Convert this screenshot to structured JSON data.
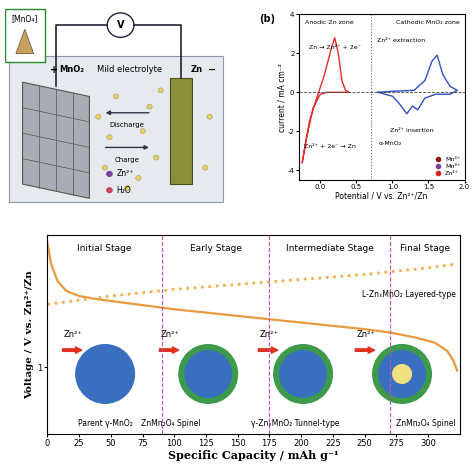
{
  "schematic": {
    "inset_label": "[MnO₄]",
    "voltmeter": "V",
    "cathode_sign": "+",
    "cathode_label": "MnO₂",
    "electrolyte": "Mild electrolyte",
    "anode_label": "Zn",
    "anode_sign": "−",
    "discharge": "Discharge",
    "charge": "Charge",
    "legend_items": [
      {
        "name": "Zn²⁺",
        "color": "#7a3fa0"
      },
      {
        "name": "H₂O",
        "color": "#d04060"
      }
    ]
  },
  "chart_data": [
    {
      "type": "line",
      "panel_label": "(b)",
      "xlabel": "Potential / V vs. Zn²⁺/Zn",
      "ylabel": "current / mA cm⁻²",
      "xlim": [
        -0.3,
        2.0
      ],
      "ylim": [
        -4.5,
        4
      ],
      "xticks": [
        {
          "value": 0,
          "label": "0.0"
        },
        {
          "value": 0.5,
          "label": "0.5"
        },
        {
          "value": 1,
          "label": "1.0"
        },
        {
          "value": 1.5,
          "label": "1.5"
        },
        {
          "value": 2,
          "label": "2.0"
        }
      ],
      "yticks": [
        -4,
        -2,
        0,
        2,
        4
      ],
      "zone_boundary": 0.7,
      "annotations": [
        "Anodic Zn zone",
        "Cathodic MnO₂ zone",
        "Zn → Zn²⁺ + 2e⁻",
        "Zn²⁺ + 2e⁻ → Zn",
        "Zn²⁺ extraction",
        "Zn²⁺ insertion",
        "α-MnO₂"
      ],
      "legend_items": [
        {
          "name": "Mn⁴⁺",
          "color": "#8b1a1a"
        },
        {
          "name": "Mn³⁺",
          "color": "#7a3fa0"
        },
        {
          "name": "Zn²⁺",
          "color": "#e02020"
        }
      ],
      "legend": "lower right",
      "series": [
        {
          "color": "#e03030",
          "line_style": "solid",
          "x": [
            -0.25,
            -0.15,
            -0.05,
            0.05,
            0.15,
            0.2,
            0.25,
            0.3,
            0.35,
            0.4,
            0.3,
            0.1,
            0.0,
            -0.1,
            -0.2,
            -0.25
          ],
          "values": [
            -3.6,
            -1.5,
            -0.3,
            0.8,
            2.2,
            2.8,
            2.0,
            0.6,
            0.1,
            0.0,
            0.0,
            0.0,
            -0.1,
            -0.8,
            -2.5,
            -3.6
          ]
        },
        {
          "color": "#3050c0",
          "line_style": "solid",
          "x": [
            0.8,
            1.0,
            1.1,
            1.2,
            1.28,
            1.35,
            1.45,
            1.6,
            1.8,
            1.9,
            1.8,
            1.7,
            1.62,
            1.55,
            1.45,
            1.3,
            1.0,
            0.8
          ],
          "values": [
            0.0,
            -0.2,
            -0.6,
            -1.1,
            -0.7,
            -0.9,
            -0.3,
            -0.1,
            -0.1,
            0.1,
            0.3,
            0.9,
            1.9,
            1.6,
            0.6,
            0.1,
            0.05,
            0.0
          ]
        }
      ]
    },
    {
      "type": "line",
      "xlabel": "Specific Capacity / mAh g⁻¹",
      "ylabel": "Voltage / V vs. Zn²⁺/Zn",
      "xlim": [
        0,
        325
      ],
      "ylim": [
        0.6,
        1.8
      ],
      "xticks": [
        0,
        25,
        50,
        75,
        100,
        125,
        150,
        175,
        200,
        225,
        250,
        275,
        300
      ],
      "yticks": [
        1
      ],
      "stages": [
        "Initial Stage",
        "Early Stage",
        "Intermediate Stage",
        "Final Stage"
      ],
      "stage_boundaries": [
        90,
        175,
        270
      ],
      "ion_label": "Zn²⁺",
      "phases": [
        "Parent γ-MnO₂",
        "ZnMn₂O₄ Spinel",
        "γ-ZnₓMnO₂ Tunnel-type",
        "L-ZnₓMnO₂ Layered-type",
        "ZnMn₂O₄ Spinel"
      ],
      "series": [
        {
          "color": "#e89a3c",
          "line_style": "solid",
          "x": [
            0,
            3,
            8,
            15,
            25,
            40,
            60,
            80,
            100,
            125,
            150,
            175,
            200,
            225,
            250,
            270,
            290,
            305,
            315,
            320,
            323
          ],
          "values": [
            1.75,
            1.62,
            1.52,
            1.46,
            1.43,
            1.41,
            1.39,
            1.37,
            1.35,
            1.33,
            1.31,
            1.29,
            1.27,
            1.25,
            1.23,
            1.21,
            1.18,
            1.15,
            1.1,
            1.04,
            0.98
          ]
        },
        {
          "color": "#f0b050",
          "line_style": "dotted",
          "x": [
            0,
            50,
            100,
            150,
            200,
            250,
            300,
            320
          ],
          "values": [
            1.38,
            1.43,
            1.47,
            1.5,
            1.53,
            1.56,
            1.6,
            1.62
          ]
        }
      ]
    }
  ]
}
